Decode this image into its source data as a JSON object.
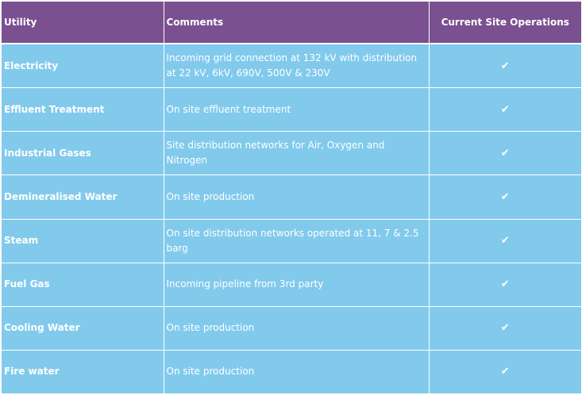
{
  "table": {
    "headers": [
      "Utility",
      "Comments",
      "Current Site Operations"
    ],
    "rows": [
      {
        "utility": "Electricity",
        "comment": "Incoming grid connection at 132 kV with distribution at 22 kV, 6kV, 690V, 500V & 230V",
        "status": "✔"
      },
      {
        "utility": "Effluent Treatment",
        "comment": "On site effluent treatment",
        "status": "✔"
      },
      {
        "utility": "Industrial Gases",
        "comment": "Site distribution networks for Air, Oxygen and Nitrogen",
        "status": "✔"
      },
      {
        "utility": "Demineralised Water",
        "comment": "On site production",
        "status": "✔"
      },
      {
        "utility": "Steam",
        "comment": "On site distribution networks operated at 11, 7 & 2.5 barg",
        "status": "✔"
      },
      {
        "utility": "Fuel Gas",
        "comment": "Incoming pipeline from 3rd party",
        "status": "✔"
      },
      {
        "utility": "Cooling Water",
        "comment": "On site production",
        "status": "✔"
      },
      {
        "utility": "Fire water",
        "comment": "On site production",
        "status": "✔"
      }
    ]
  },
  "colors": {
    "header_background": "#7a5090",
    "row_background": "#82caec",
    "text": "#ffffff"
  }
}
